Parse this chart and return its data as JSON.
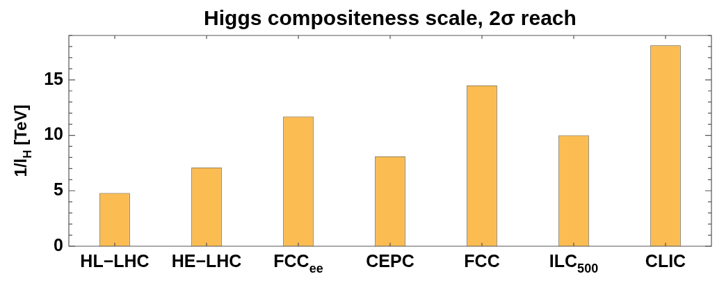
{
  "chart_data": {
    "type": "bar",
    "title": "Higgs compositeness scale, 2σ reach",
    "ylabel": "1/l$_{H}$ [TeV]",
    "categories": [
      "HL−LHC",
      "HE−LHC",
      "FCC$_{ee}$",
      "CEPC",
      "FCC",
      "ILC$_{500}$",
      "CLIC"
    ],
    "values": [
      4.8,
      7.1,
      11.7,
      8.1,
      14.5,
      10.0,
      18.1
    ],
    "color": "#fbbc52",
    "ylim": [
      0,
      19
    ],
    "yticks": [
      0,
      {
        "value": 1,
        "label": null
      },
      {
        "value": 2,
        "label": null
      },
      {
        "value": 3,
        "label": null
      },
      {
        "value": 4,
        "label": null
      },
      5,
      {
        "value": 6,
        "label": null
      },
      {
        "value": 7,
        "label": null
      },
      {
        "value": 8,
        "label": null
      },
      {
        "value": 9,
        "label": null
      },
      10,
      {
        "value": 11,
        "label": null
      },
      {
        "value": 12,
        "label": null
      },
      {
        "value": 13,
        "label": null
      },
      {
        "value": 14,
        "label": null
      },
      15,
      {
        "value": 16,
        "label": null
      },
      {
        "value": 17,
        "label": null
      },
      {
        "value": 18,
        "label": null
      },
      {
        "value": 19,
        "label": null
      }
    ]
  }
}
